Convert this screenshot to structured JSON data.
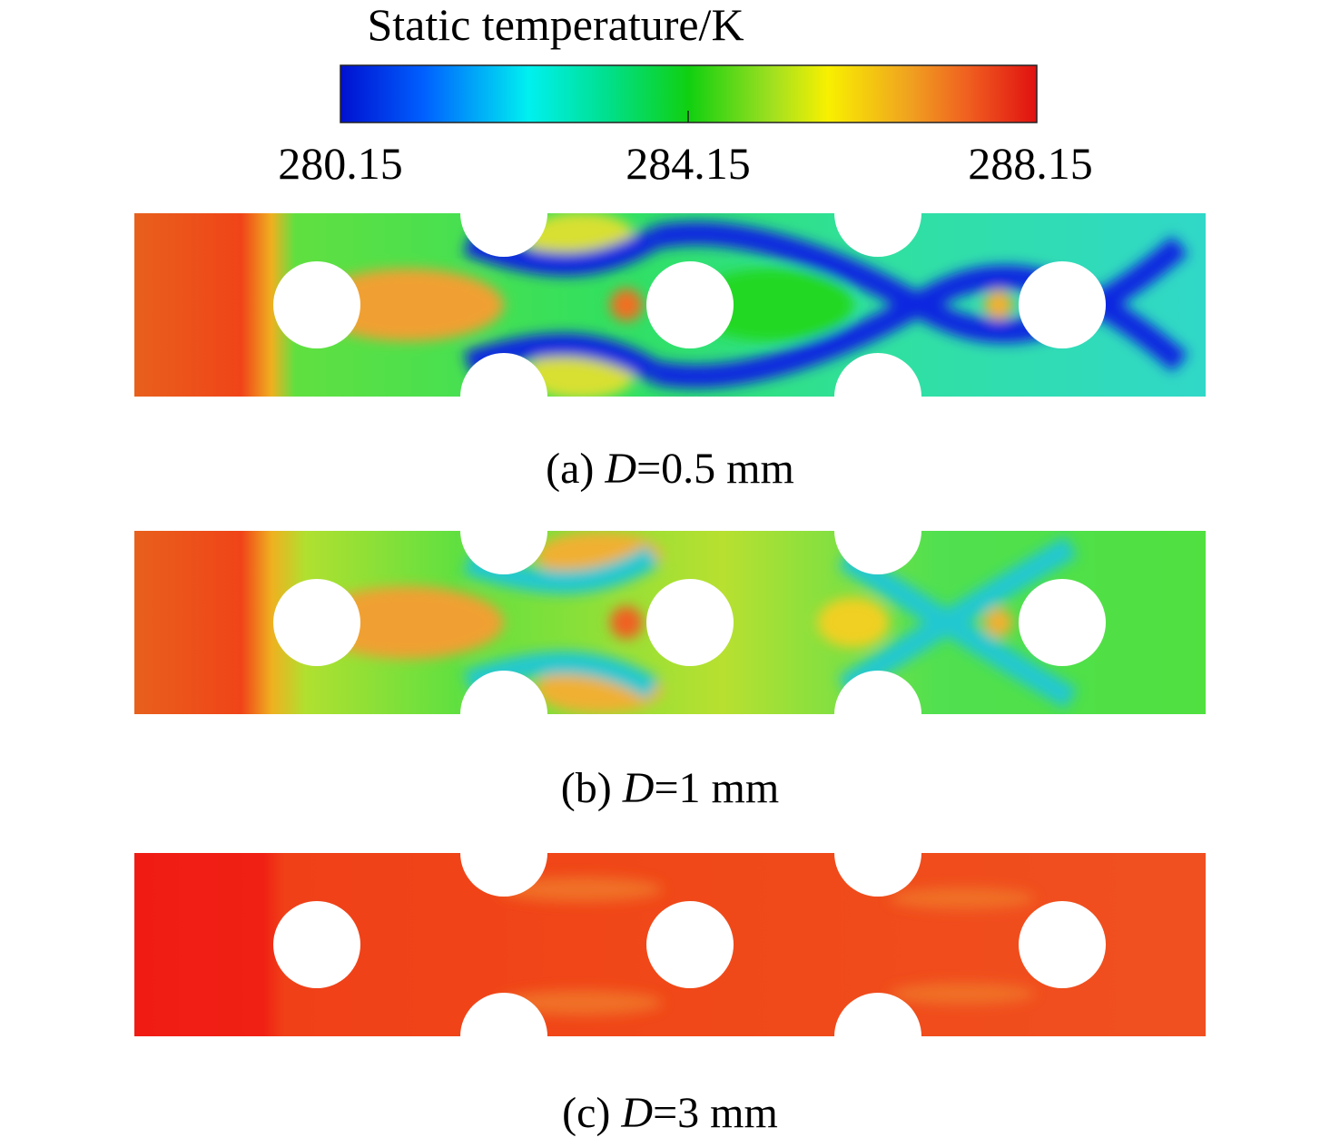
{
  "colorbar": {
    "title": "Static temperature/K",
    "ticks": [
      "280.15",
      "284.15",
      "288.15"
    ]
  },
  "panels": [
    {
      "label": "(a)",
      "variable": "D",
      "value": "=0.5 mm"
    },
    {
      "label": "(b)",
      "variable": "D",
      "value": "=1 mm"
    },
    {
      "label": "(c)",
      "variable": "D",
      "value": "=3 mm"
    }
  ]
}
